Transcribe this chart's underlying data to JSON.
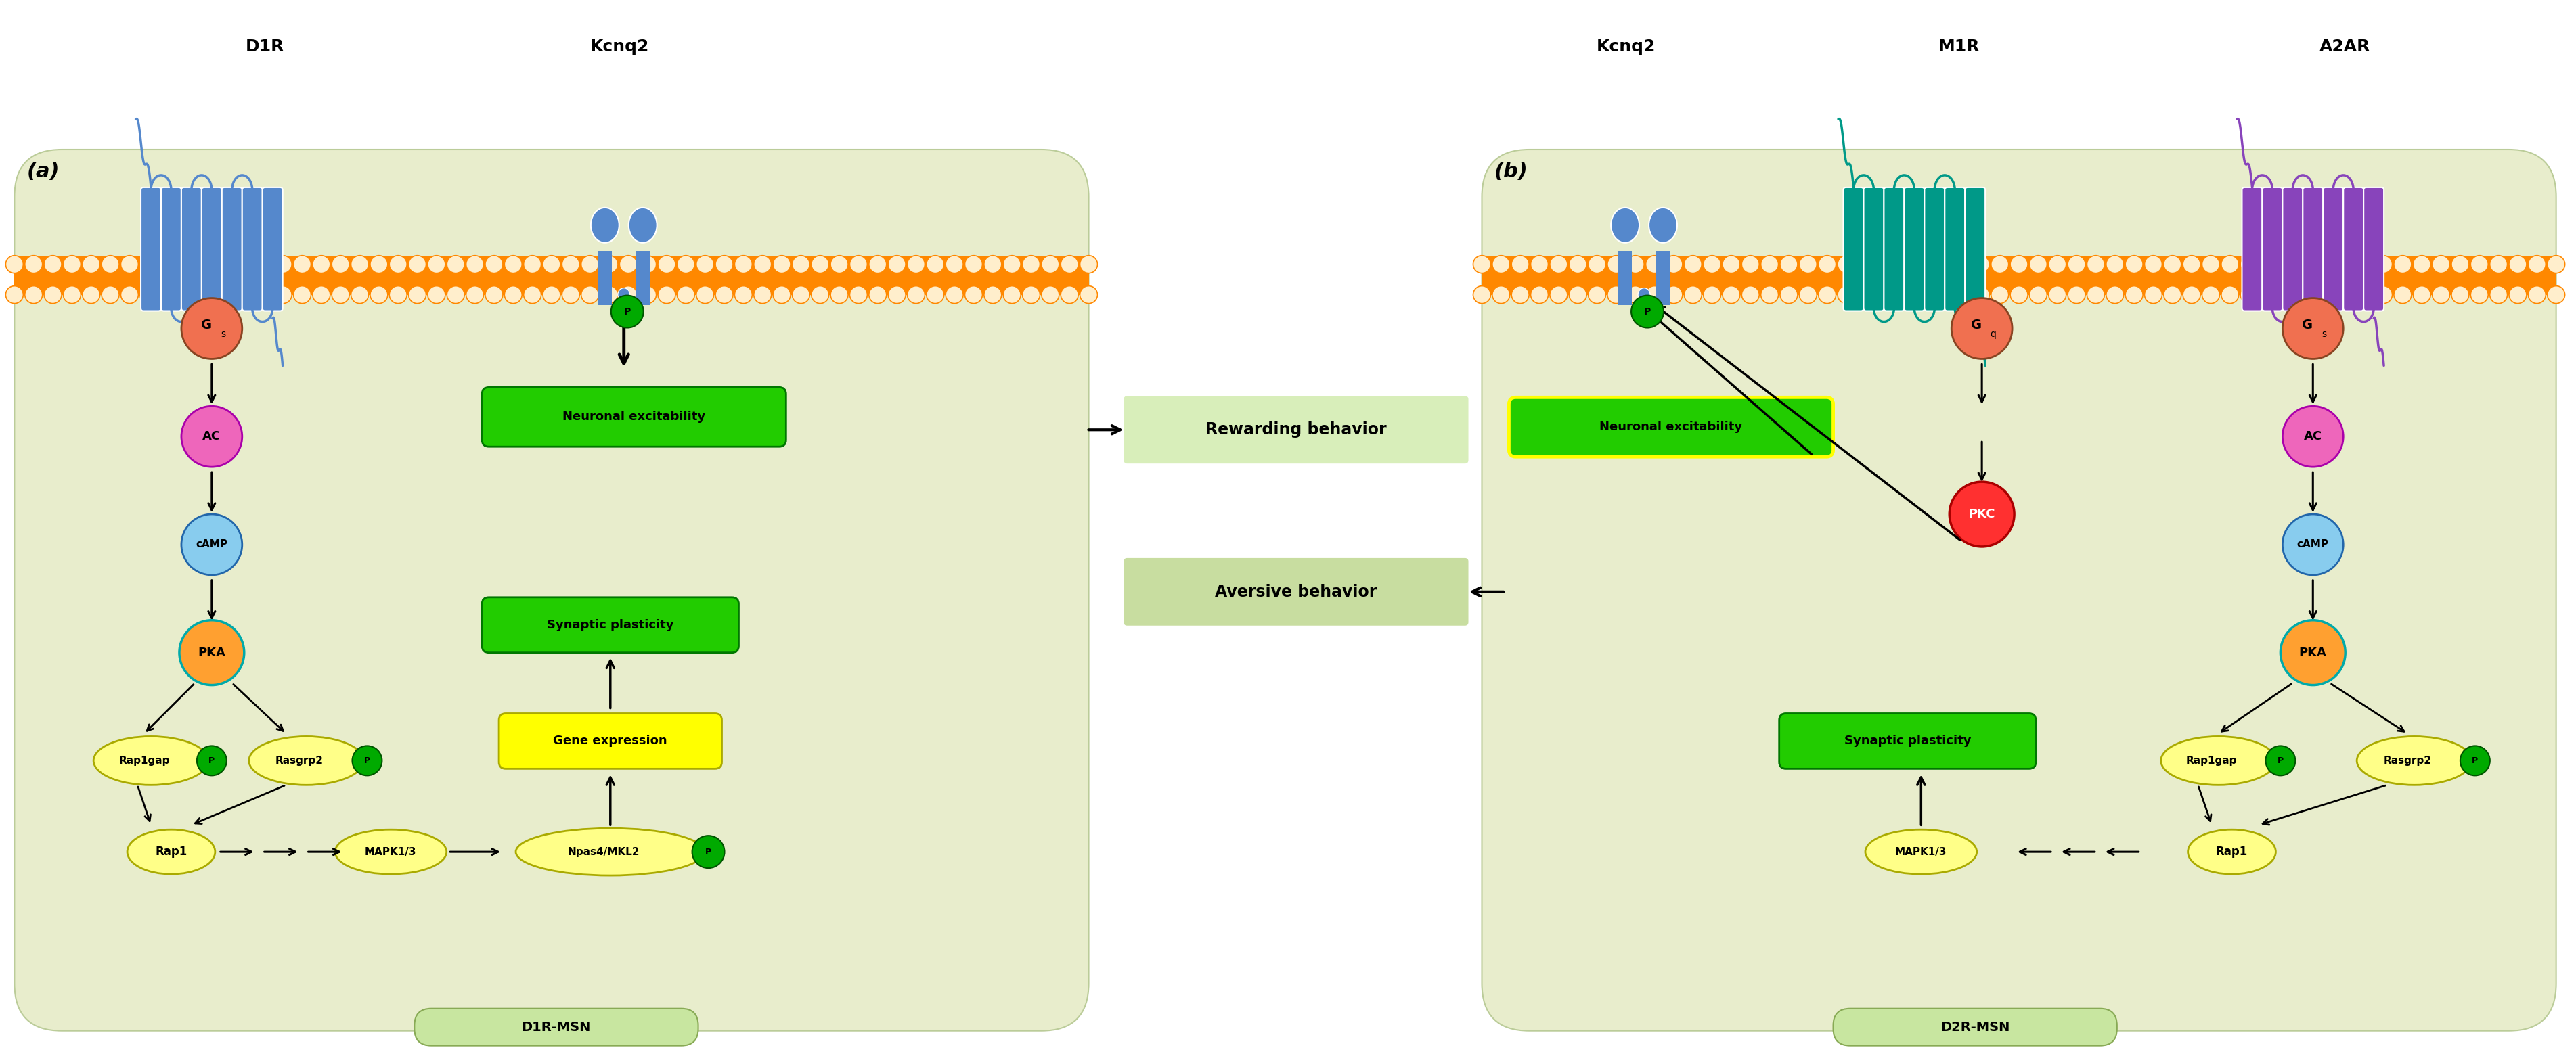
{
  "fig_width": 38.06,
  "fig_height": 15.55,
  "bg_color": "#ffffff",
  "panel_bg": "#e8edcc",
  "center_bg": "#d4e8a0",
  "rewarding_bg": "#d8ebb8",
  "aversive_bg": "#c8dda0",
  "green_box": "#22cc00",
  "yellow_box": "#ffff00",
  "label_a": "(a)",
  "label_b": "(b)",
  "d1r_label": "D1R",
  "kcnq2_label_a": "Kcnq2",
  "kcnq2_label_b": "Kcnq2",
  "m1r_label": "M1R",
  "a2ar_label": "A2AR",
  "d1r_msn": "D1R-MSN",
  "d2r_msn": "D2R-MSN",
  "rewarding": "Rewarding behavior",
  "aversive": "Aversive behavior",
  "neuronal_exc": "Neuronal excitability",
  "synaptic_plas": "Synaptic plasticity",
  "gene_expr": "Gene expression",
  "gs_color": "#f87040",
  "gq_color": "#f87040",
  "ac_color": "#ee66bb",
  "camp_color": "#88ccee",
  "pka_color": "#ffa030",
  "pkc_color": "#ff3030",
  "ellipse_color": "#ffff88",
  "p_badge_color": "#00aa00",
  "blue_receptor": "#5588cc",
  "teal_receptor": "#009988",
  "purple_receptor": "#8844bb",
  "membrane_orange": "#ff8800",
  "membrane_head": "#ffddcc"
}
